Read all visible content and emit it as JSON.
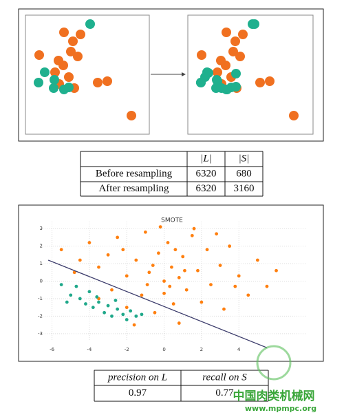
{
  "table1": {
    "header": [
      "|L|",
      "|S|"
    ],
    "rows": [
      [
        "Before resampling",
        6320,
        680
      ],
      [
        "After resampling",
        6320,
        3160
      ]
    ]
  },
  "chart_data": {
    "type": "scatter",
    "title": "SMOTE",
    "xlim": [
      -6.5,
      7.6
    ],
    "ylim": [
      -3.4,
      3.4
    ],
    "xticks": [
      -6,
      -4,
      -2,
      0,
      2,
      4
    ],
    "yticks": [
      -3,
      -2,
      -1,
      0,
      1,
      2,
      3
    ],
    "grid": true,
    "series": [
      {
        "color": "#ff7f0e",
        "x": [
          -5.5,
          -4.8,
          -4,
          -3.5,
          -3,
          -2.8,
          -2.5,
          -2,
          -2,
          -1.5,
          -1.2,
          -1,
          -0.8,
          -0.5,
          -0.3,
          0,
          0,
          0.2,
          0.4,
          0.5,
          0.8,
          1,
          1.2,
          1.5,
          1.8,
          2,
          2.3,
          2.5,
          3,
          3.2,
          3.5,
          4,
          4.5,
          5,
          5.5,
          6,
          -1.6,
          0.8,
          -3.5,
          1.6,
          -0.2,
          2.8,
          -4.5,
          0.3,
          -0.6,
          1.1,
          -2.2,
          3.8,
          -0.9,
          0.6
        ],
        "values": [
          1.8,
          0.5,
          2.2,
          0.8,
          1.5,
          -0.5,
          2.5,
          0.3,
          -1.5,
          1.2,
          -0.8,
          2.8,
          0.5,
          -1.8,
          1.6,
          0,
          -0.7,
          2.2,
          0.8,
          -1.3,
          0.2,
          1.4,
          -0.5,
          2.6,
          0.6,
          -1.2,
          1.8,
          -0.2,
          0.9,
          -1.6,
          2,
          0.3,
          -0.8,
          1.2,
          -0.3,
          0.6,
          -2.5,
          -2.4,
          -1,
          3,
          3.1,
          2.7,
          1.2,
          -0.3,
          0.9,
          0.6,
          1.8,
          -0.3,
          -0.2,
          1.8
        ]
      },
      {
        "color": "#1fa88a",
        "x": [
          -5.5,
          -5,
          -4.5,
          -4.2,
          -4,
          -3.8,
          -3.5,
          -3.2,
          -3,
          -2.8,
          -2.5,
          -2.2,
          -2,
          -1.8,
          -1.5,
          -5.2,
          -4.7,
          -3.6,
          -2.6,
          -1.2
        ],
        "values": [
          -0.2,
          -0.8,
          -1,
          -1.3,
          -0.6,
          -1.5,
          -1.2,
          -1.8,
          -1.4,
          -2,
          -1.6,
          -1.9,
          -2.2,
          -1.7,
          -2,
          -1.2,
          -0.3,
          -0.9,
          -1.1,
          -1.9
        ]
      }
    ],
    "line": {
      "color": "#3b3b6b",
      "x": [
        -6.2,
        5.5
      ],
      "values": [
        1.2,
        -3.8
      ]
    }
  },
  "table2": {
    "header": [
      "precision on L",
      "recall on S"
    ],
    "rows": [
      [
        0.97,
        0.77
      ]
    ]
  },
  "watermark": {
    "name": "中国肉类机械网",
    "url": "www.mpmpc.org"
  }
}
